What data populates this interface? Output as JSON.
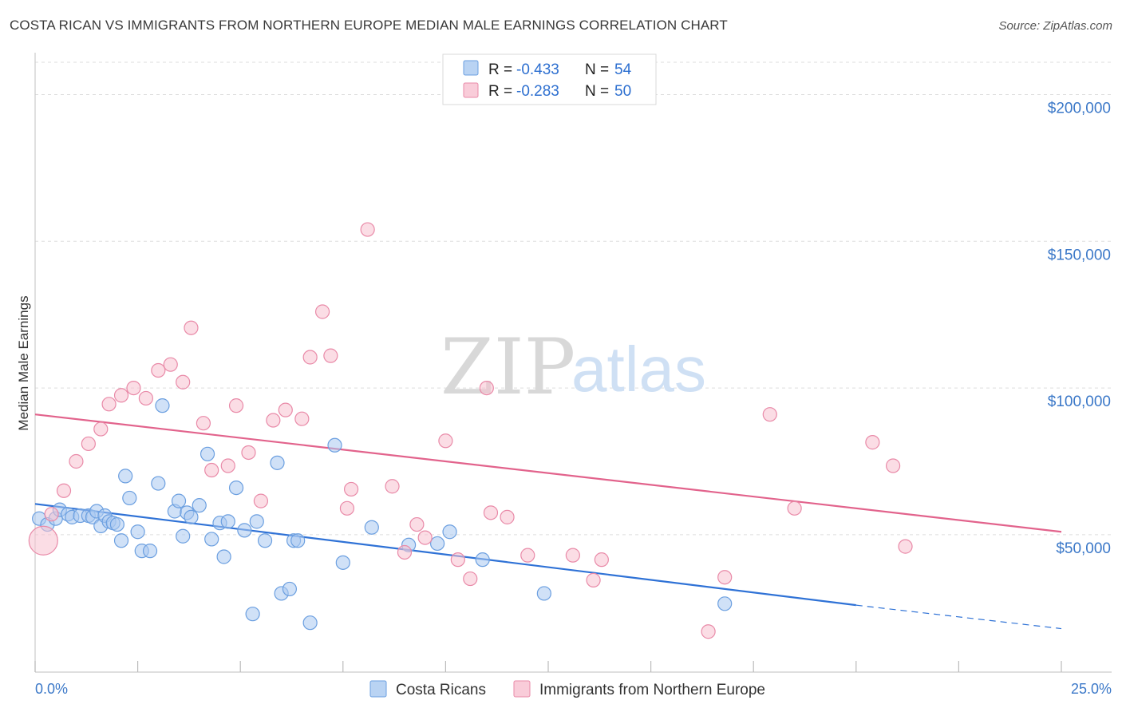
{
  "title": "COSTA RICAN VS IMMIGRANTS FROM NORTHERN EUROPE MEDIAN MALE EARNINGS CORRELATION CHART",
  "source": "Source: ZipAtlas.com",
  "watermark": {
    "zip": "ZIP",
    "atlas": "atlas"
  },
  "colors": {
    "blue_fill": "#a9c8f0",
    "blue_stroke": "#6b9fe0",
    "blue_line": "#2f72d6",
    "pink_fill": "#f7c1d0",
    "pink_stroke": "#e98aa8",
    "pink_line": "#e2638c",
    "grid": "#dddddd",
    "tick_text": "#3b78c8"
  },
  "legend": {
    "rows": [
      {
        "r_label": "R =",
        "r_value": "-0.433",
        "n_label": "N =",
        "n_value": "54"
      },
      {
        "r_label": "R =",
        "r_value": "-0.283",
        "n_label": "N =",
        "n_value": "50"
      }
    ]
  },
  "chart_data": {
    "type": "scatter",
    "title": "COSTA RICAN VS IMMIGRANTS FROM NORTHERN EUROPE MEDIAN MALE EARNINGS CORRELATION CHART",
    "xlabel": "",
    "ylabel": "Median Male Earnings",
    "xlim": [
      0,
      25
    ],
    "ylim": [
      7000,
      211000
    ],
    "x_tick_labels": [
      "0.0%",
      "25.0%"
    ],
    "y_ticks": [
      50000,
      100000,
      150000,
      200000
    ],
    "y_tick_labels": [
      "$50,000",
      "$100,000",
      "$150,000",
      "$200,000"
    ],
    "grid": true,
    "legend_position": "bottom",
    "series": [
      {
        "name": "Costa Ricans",
        "color": "#a9c8f0",
        "trend": {
          "x": [
            0,
            20
          ],
          "y": [
            60500,
            26000
          ],
          "dashed_to": [
            25,
            18000
          ]
        },
        "points": [
          [
            0.1,
            55500
          ],
          [
            0.3,
            53500
          ],
          [
            0.5,
            55500
          ],
          [
            0.6,
            58500
          ],
          [
            0.8,
            57000
          ],
          [
            0.9,
            56000
          ],
          [
            1.1,
            56500
          ],
          [
            1.3,
            56500
          ],
          [
            1.4,
            56000
          ],
          [
            1.5,
            58000
          ],
          [
            1.6,
            53000
          ],
          [
            1.7,
            56500
          ],
          [
            1.8,
            54500
          ],
          [
            1.9,
            54000
          ],
          [
            2.0,
            53500
          ],
          [
            2.1,
            48000
          ],
          [
            2.2,
            70000
          ],
          [
            2.3,
            62500
          ],
          [
            2.5,
            51000
          ],
          [
            2.6,
            44500
          ],
          [
            2.8,
            44500
          ],
          [
            3.0,
            67500
          ],
          [
            3.1,
            94000
          ],
          [
            3.4,
            58000
          ],
          [
            3.5,
            61500
          ],
          [
            3.6,
            49500
          ],
          [
            3.7,
            57500
          ],
          [
            3.8,
            56000
          ],
          [
            4.0,
            60000
          ],
          [
            4.2,
            77500
          ],
          [
            4.3,
            48500
          ],
          [
            4.5,
            54000
          ],
          [
            4.6,
            42500
          ],
          [
            4.7,
            54500
          ],
          [
            4.9,
            66000
          ],
          [
            5.1,
            51500
          ],
          [
            5.3,
            23000
          ],
          [
            5.4,
            54500
          ],
          [
            5.6,
            48000
          ],
          [
            5.9,
            74500
          ],
          [
            6.0,
            30000
          ],
          [
            6.3,
            48000
          ],
          [
            6.4,
            48000
          ],
          [
            6.2,
            31500
          ],
          [
            6.7,
            20000
          ],
          [
            7.3,
            80500
          ],
          [
            7.5,
            40500
          ],
          [
            8.2,
            52500
          ],
          [
            9.1,
            46500
          ],
          [
            9.8,
            47000
          ],
          [
            10.1,
            51000
          ],
          [
            10.9,
            41500
          ],
          [
            12.4,
            30000
          ],
          [
            16.8,
            26500
          ]
        ]
      },
      {
        "name": "Immigrants from Northern Europe",
        "color": "#f7c1d0",
        "trend": {
          "x": [
            0,
            25
          ],
          "y": [
            91000,
            51000
          ]
        },
        "points": [
          [
            0.2,
            48000
          ],
          [
            0.4,
            57000
          ],
          [
            0.7,
            65000
          ],
          [
            1.0,
            75000
          ],
          [
            1.3,
            81000
          ],
          [
            1.6,
            86000
          ],
          [
            1.8,
            94500
          ],
          [
            2.1,
            97500
          ],
          [
            2.4,
            100000
          ],
          [
            2.7,
            96500
          ],
          [
            3.0,
            106000
          ],
          [
            3.3,
            108000
          ],
          [
            3.6,
            102000
          ],
          [
            3.8,
            120500
          ],
          [
            4.1,
            88000
          ],
          [
            4.3,
            72000
          ],
          [
            4.7,
            73500
          ],
          [
            4.9,
            94000
          ],
          [
            5.2,
            78000
          ],
          [
            5.5,
            61500
          ],
          [
            5.8,
            89000
          ],
          [
            6.1,
            92500
          ],
          [
            6.5,
            89500
          ],
          [
            6.7,
            110500
          ],
          [
            7.2,
            111000
          ],
          [
            7.0,
            126000
          ],
          [
            7.7,
            65500
          ],
          [
            8.1,
            154000
          ],
          [
            7.6,
            59000
          ],
          [
            8.7,
            66500
          ],
          [
            9.0,
            44000
          ],
          [
            9.3,
            53500
          ],
          [
            9.5,
            49000
          ],
          [
            10.0,
            82000
          ],
          [
            10.3,
            41500
          ],
          [
            10.6,
            35000
          ],
          [
            11.0,
            100000
          ],
          [
            11.1,
            57500
          ],
          [
            11.5,
            56000
          ],
          [
            12.0,
            43000
          ],
          [
            13.1,
            43000
          ],
          [
            13.6,
            34500
          ],
          [
            13.8,
            41500
          ],
          [
            16.4,
            17000
          ],
          [
            16.8,
            35500
          ],
          [
            17.9,
            91000
          ],
          [
            18.5,
            59000
          ],
          [
            20.4,
            81500
          ],
          [
            20.9,
            73500
          ],
          [
            21.2,
            46000
          ]
        ]
      }
    ]
  }
}
